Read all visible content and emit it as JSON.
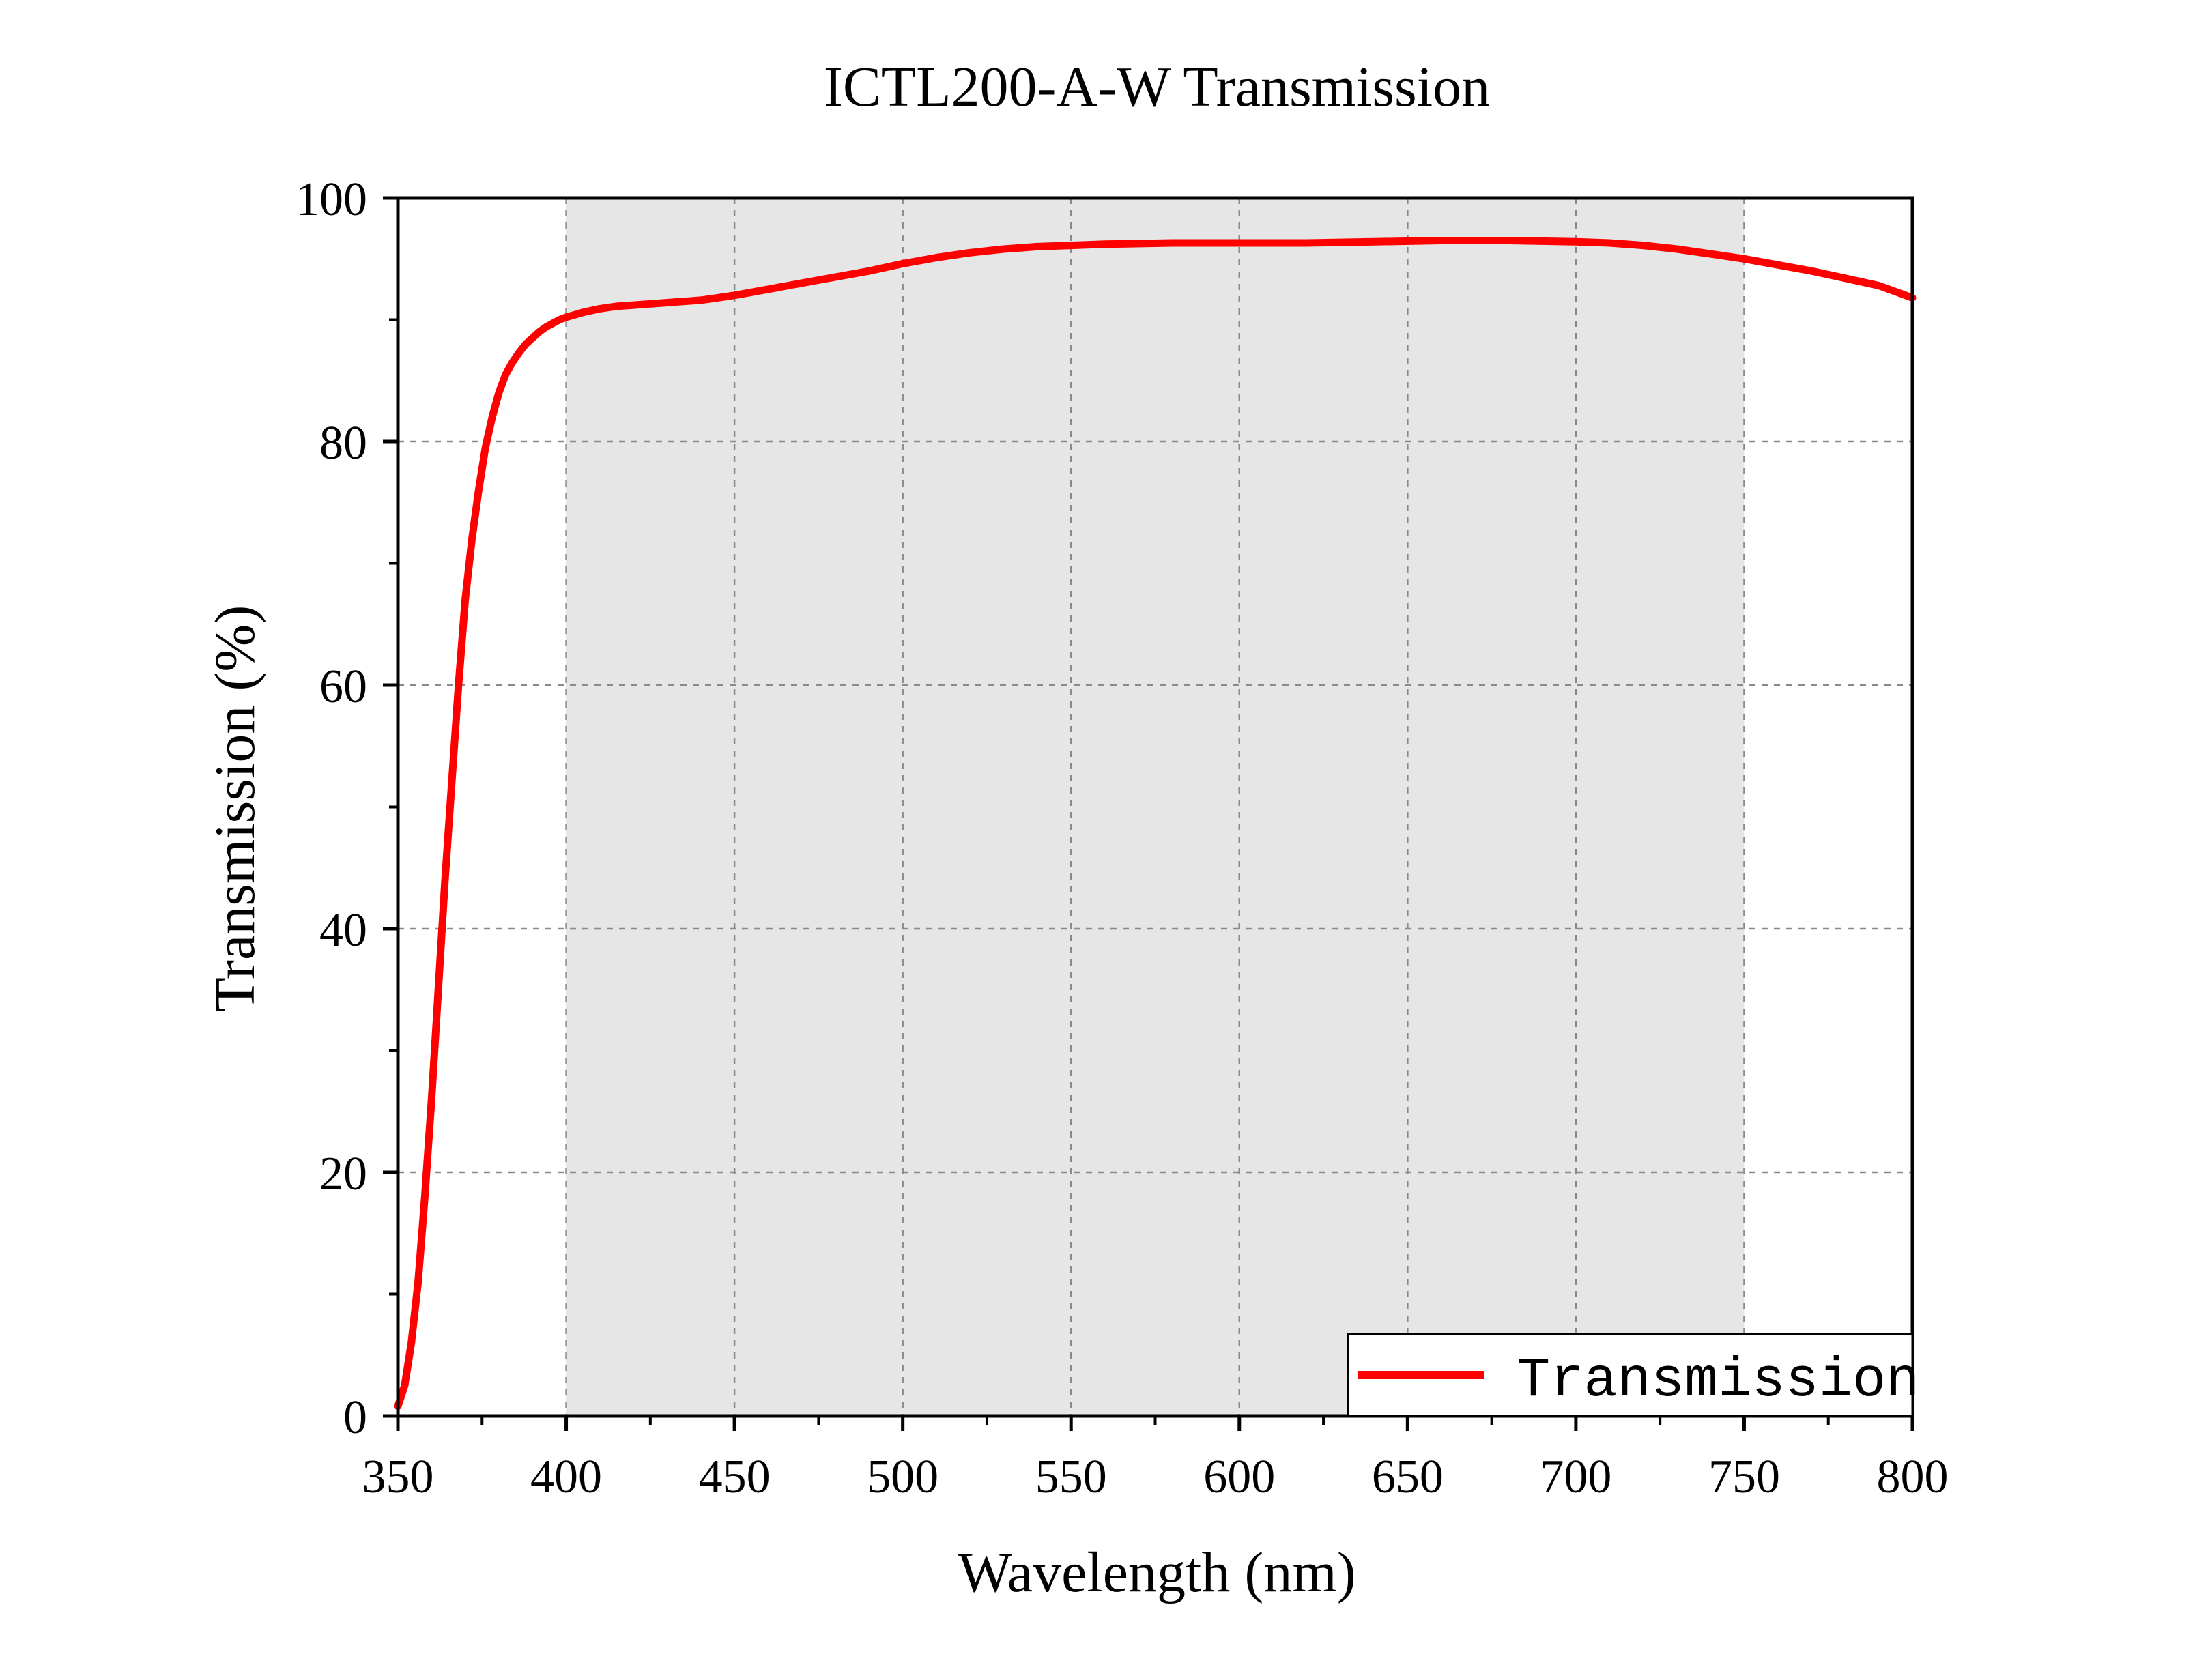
{
  "chart_data": {
    "type": "line",
    "title": "ICTL200-A-W Transmission",
    "xlabel": "Wavelength (nm)",
    "ylabel": "Transmission (%)",
    "xlim": [
      350,
      800
    ],
    "ylim": [
      0,
      100
    ],
    "x_ticks": [
      350,
      400,
      450,
      500,
      550,
      600,
      650,
      700,
      750,
      800
    ],
    "y_ticks": [
      0,
      20,
      40,
      60,
      80,
      100
    ],
    "grid": true,
    "shaded_band": {
      "x_start": 400,
      "x_end": 750,
      "color": "#e6e6e6"
    },
    "legend": {
      "placement": "bottom-right"
    },
    "series": [
      {
        "name": "Transmission",
        "color": "#ff0000",
        "x": [
          350,
          352,
          354,
          356,
          358,
          360,
          362,
          364,
          366,
          368,
          370,
          372,
          374,
          376,
          378,
          380,
          382,
          384,
          386,
          388,
          390,
          392,
          394,
          396,
          398,
          400,
          405,
          410,
          415,
          420,
          425,
          430,
          435,
          440,
          445,
          450,
          460,
          470,
          480,
          490,
          500,
          510,
          520,
          530,
          540,
          550,
          560,
          580,
          600,
          620,
          640,
          660,
          680,
          700,
          710,
          720,
          730,
          740,
          750,
          760,
          770,
          780,
          790,
          800
        ],
        "y": [
          0.8,
          2.5,
          6,
          11,
          18,
          26,
          35,
          44,
          52,
          60,
          67,
          72,
          76,
          79.5,
          82,
          84,
          85.5,
          86.5,
          87.3,
          88,
          88.5,
          89,
          89.4,
          89.7,
          90,
          90.2,
          90.6,
          90.9,
          91.1,
          91.2,
          91.3,
          91.4,
          91.5,
          91.6,
          91.8,
          92,
          92.5,
          93,
          93.5,
          94,
          94.6,
          95.1,
          95.5,
          95.8,
          96,
          96.1,
          96.2,
          96.3,
          96.3,
          96.3,
          96.4,
          96.5,
          96.5,
          96.4,
          96.3,
          96.1,
          95.8,
          95.4,
          95,
          94.5,
          94,
          93.4,
          92.8,
          91.8
        ]
      }
    ]
  }
}
